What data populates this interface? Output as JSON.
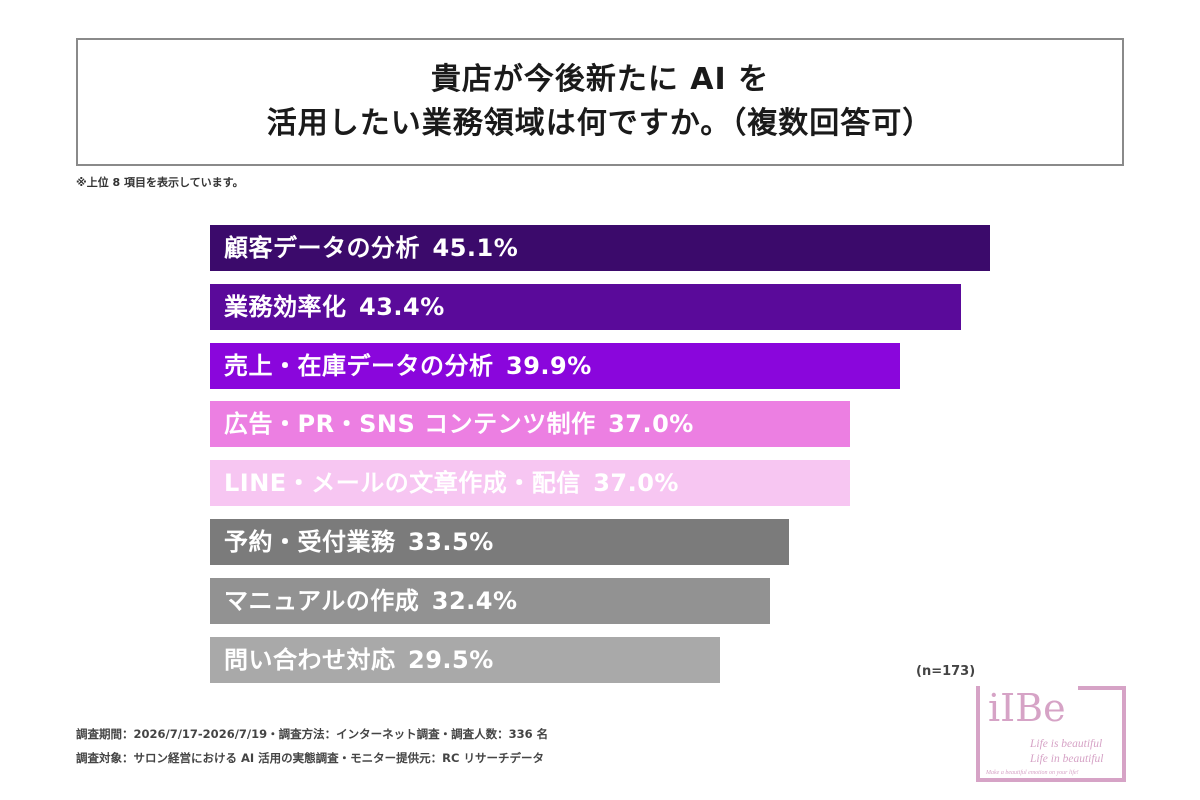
{
  "title": {
    "line1": "貴店が今後新たに AI を",
    "line2": "活用したい業務領域は何ですか。（複数回答可）"
  },
  "note": "※上位 8 項目を表示しています。",
  "n_label": "(n=173)",
  "footer": {
    "line1": "調査期間：2026/7/17-2026/7/19・調査方法：インターネット調査・調査人数：336 名",
    "line2": "調査対象：サロン経営における AI 活用の実態調査・モニター提供元：RC リサーチデータ"
  },
  "logo": {
    "mark": "iIBe",
    "tag1": "Life is beautiful",
    "tag2": "Life in beautiful",
    "tag3": "Make a beautiful emotion on your life!"
  },
  "chart_data": {
    "type": "bar",
    "orientation": "horizontal",
    "categories": [
      "顧客データの分析",
      "業務効率化",
      "売上・在庫データの分析",
      "広告・PR・SNS コンテンツ制作",
      "LINE・メールの文章作成・配信",
      "予約・受付業務",
      "マニュアルの作成",
      "問い合わせ対応"
    ],
    "values": [
      45.1,
      43.4,
      39.9,
      37.0,
      37.0,
      33.5,
      32.4,
      29.5
    ],
    "value_labels": [
      "45.1%",
      "43.4%",
      "39.9%",
      "37.0%",
      "37.0%",
      "33.5%",
      "32.4%",
      "29.5%"
    ],
    "colors": [
      "#3b0a6b",
      "#5a0a9a",
      "#8a06dc",
      "#ec7fe2",
      "#f7c6f2",
      "#7b7b7b",
      "#929292",
      "#a9a9a9"
    ],
    "unit": "%",
    "xlim": [
      0,
      45.1
    ],
    "grid": false,
    "legend": "none"
  }
}
